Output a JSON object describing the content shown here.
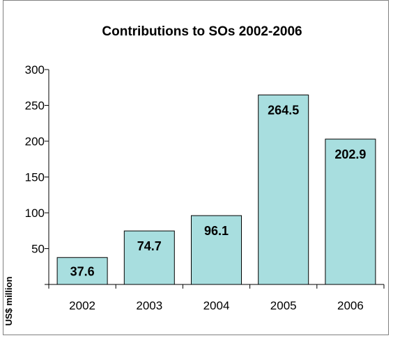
{
  "chart_data": {
    "type": "bar",
    "title": "Contributions to SOs 2002-2006",
    "xlabel": "",
    "ylabel": "US$ million",
    "categories": [
      "2002",
      "2003",
      "2004",
      "2005",
      "2006"
    ],
    "values": [
      37.6,
      74.7,
      96.1,
      264.5,
      202.9
    ],
    "data_labels": [
      "37.6",
      "74.7",
      "96.1",
      "264.5",
      "202.9"
    ],
    "ylim": [
      0,
      300
    ],
    "yticks": [
      0,
      50,
      100,
      150,
      200,
      250,
      300
    ],
    "ytick_labels": [
      "",
      "50",
      "100",
      "150",
      "200",
      "250",
      "300"
    ],
    "grid": false,
    "legend": "none",
    "bar_color": "#a8dedf",
    "bar_edge_color": "#000000"
  }
}
